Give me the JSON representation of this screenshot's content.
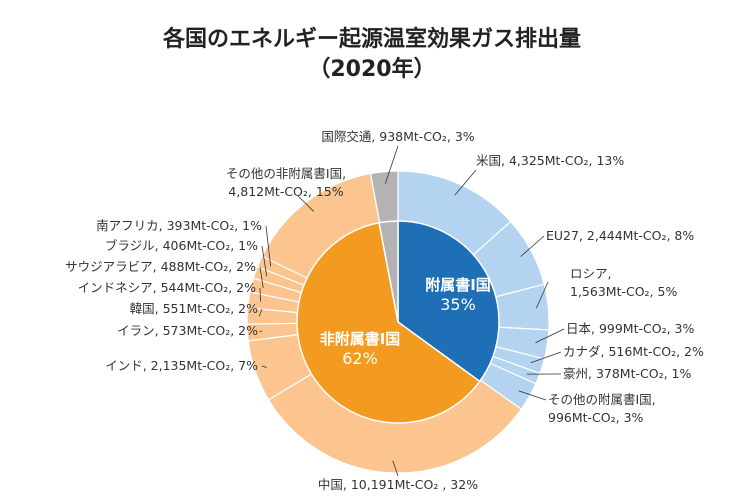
{
  "chart_data": {
    "type": "pie",
    "title": "各国のエネルギー起源温室効果ガス排出量",
    "subtitle": "（2020年）",
    "inner_ring": [
      {
        "name": "附属書Ⅰ国",
        "percent": "35%",
        "value": 35,
        "color": "#1f6fb7"
      },
      {
        "name": "非附属書Ⅰ国",
        "percent": "62%",
        "value": 62,
        "color": "#f39a21"
      },
      {
        "name": "",
        "percent": "",
        "value": 3,
        "color": "#b3b3b3"
      }
    ],
    "outer_ring": [
      {
        "label": "米国, 4,325Mt-CO₂, 13%",
        "value": 4325,
        "group": "annex"
      },
      {
        "label": "EU27, 2,444Mt-CO₂, 8%",
        "value": 2444,
        "group": "annex"
      },
      {
        "label": "ロシア,",
        "label2": "1,563Mt-CO₂, 5%",
        "value": 1563,
        "group": "annex"
      },
      {
        "label": "日本, 999Mt-CO₂, 3%",
        "value": 999,
        "group": "annex"
      },
      {
        "label": "カナダ, 516Mt-CO₂, 2%",
        "value": 516,
        "group": "annex"
      },
      {
        "label": "豪州, 378Mt-CO₂, 1%",
        "value": 378,
        "group": "annex"
      },
      {
        "label": "その他の附属書Ⅰ国,",
        "label2": "996Mt-CO₂, 3%",
        "value": 996,
        "group": "annex"
      },
      {
        "label": "中国, 10,191Mt-CO₂ , 32%",
        "value": 10191,
        "group": "non"
      },
      {
        "label": "インド, 2,135Mt-CO₂, 7%",
        "value": 2135,
        "group": "non"
      },
      {
        "label": "イラン, 573Mt-CO₂, 2%",
        "value": 573,
        "group": "non"
      },
      {
        "label": "韓国, 551Mt-CO₂, 2%",
        "value": 551,
        "group": "non"
      },
      {
        "label": "インドネシア, 544Mt-CO₂, 2%",
        "value": 544,
        "group": "non"
      },
      {
        "label": "サウジアラビア, 488Mt-CO₂, 2%",
        "value": 488,
        "group": "non"
      },
      {
        "label": "ブラジル, 406Mt-CO₂, 1%",
        "value": 406,
        "group": "non"
      },
      {
        "label": "南アフリカ, 393Mt-CO₂, 1%",
        "value": 393,
        "group": "non"
      },
      {
        "label": "その他の非附属書Ⅰ国,",
        "label2": "4,812Mt-CO₂, 15%",
        "value": 4812,
        "group": "non"
      },
      {
        "label": "国際交通, 938Mt-CO₂, 3%",
        "value": 938,
        "group": "intl"
      }
    ],
    "colors": {
      "annex_outer": "#b4d3f0",
      "non_outer": "#fcc590",
      "intl_outer": "#b3b3b3",
      "border": "#ffffff"
    }
  }
}
